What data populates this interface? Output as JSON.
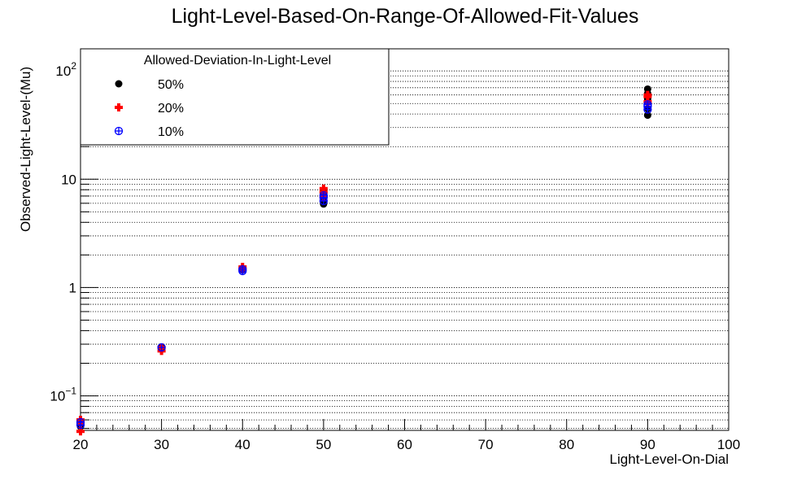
{
  "chart_data": {
    "type": "scatter",
    "title": "Light-Level-Based-On-Range-Of-Allowed-Fit-Values",
    "xlabel": "Light-Level-On-Dial",
    "ylabel": "Observed-Light-Level-(Mu)",
    "xlim": [
      20,
      100
    ],
    "ylim": [
      0.048,
      160
    ],
    "yscale": "log",
    "grid": {
      "x": false,
      "y": true
    },
    "x_ticks": [
      {
        "value": 20,
        "label": "20"
      },
      {
        "value": 30,
        "label": "30"
      },
      {
        "value": 40,
        "label": "40"
      },
      {
        "value": 50,
        "label": "50"
      },
      {
        "value": 60,
        "label": "60"
      },
      {
        "value": 70,
        "label": "70"
      },
      {
        "value": 80,
        "label": "80"
      },
      {
        "value": 90,
        "label": "90"
      },
      {
        "value": 100,
        "label": "100"
      }
    ],
    "y_ticks": [
      {
        "value": 0.1,
        "base": "10",
        "exp": "−1"
      },
      {
        "value": 1,
        "base": "1",
        "exp": ""
      },
      {
        "value": 10,
        "base": "10",
        "exp": ""
      },
      {
        "value": 100,
        "base": "10",
        "exp": "2"
      }
    ],
    "legend": {
      "title": "Allowed-Deviation-In-Light-Level",
      "placement": "top-left"
    },
    "series": [
      {
        "name": "50%",
        "color": "#000000",
        "marker": "filled-circle",
        "points": [
          {
            "x": 20,
            "y": 0.055
          },
          {
            "x": 20,
            "y": 0.058
          },
          {
            "x": 20,
            "y": 0.052
          },
          {
            "x": 30,
            "y": 0.28
          },
          {
            "x": 40,
            "y": 1.45
          },
          {
            "x": 40,
            "y": 1.5
          },
          {
            "x": 50,
            "y": 5.9
          },
          {
            "x": 50,
            "y": 6.5
          },
          {
            "x": 50,
            "y": 7.2
          },
          {
            "x": 50,
            "y": 7.8
          },
          {
            "x": 90,
            "y": 39
          },
          {
            "x": 90,
            "y": 45
          },
          {
            "x": 90,
            "y": 55
          },
          {
            "x": 90,
            "y": 62
          },
          {
            "x": 90,
            "y": 68
          }
        ]
      },
      {
        "name": "20%",
        "color": "#ff0000",
        "marker": "cross",
        "points": [
          {
            "x": 20,
            "y": 0.06
          },
          {
            "x": 20,
            "y": 0.047
          },
          {
            "x": 20,
            "y": 0.056
          },
          {
            "x": 30,
            "y": 0.26
          },
          {
            "x": 30,
            "y": 0.28
          },
          {
            "x": 40,
            "y": 1.55
          },
          {
            "x": 40,
            "y": 1.48
          },
          {
            "x": 50,
            "y": 8.2
          },
          {
            "x": 50,
            "y": 7.6
          },
          {
            "x": 50,
            "y": 6.9
          },
          {
            "x": 90,
            "y": 58
          },
          {
            "x": 90,
            "y": 60
          },
          {
            "x": 90,
            "y": 52
          }
        ]
      },
      {
        "name": "10%",
        "color": "#0000ff",
        "marker": "open-circle-plus",
        "points": [
          {
            "x": 20,
            "y": 0.054
          },
          {
            "x": 20,
            "y": 0.057
          },
          {
            "x": 30,
            "y": 0.28
          },
          {
            "x": 40,
            "y": 1.42
          },
          {
            "x": 40,
            "y": 1.47
          },
          {
            "x": 50,
            "y": 6.3
          },
          {
            "x": 50,
            "y": 6.8
          },
          {
            "x": 50,
            "y": 7.1
          },
          {
            "x": 90,
            "y": 44
          },
          {
            "x": 90,
            "y": 47
          },
          {
            "x": 90,
            "y": 49
          }
        ]
      }
    ]
  }
}
